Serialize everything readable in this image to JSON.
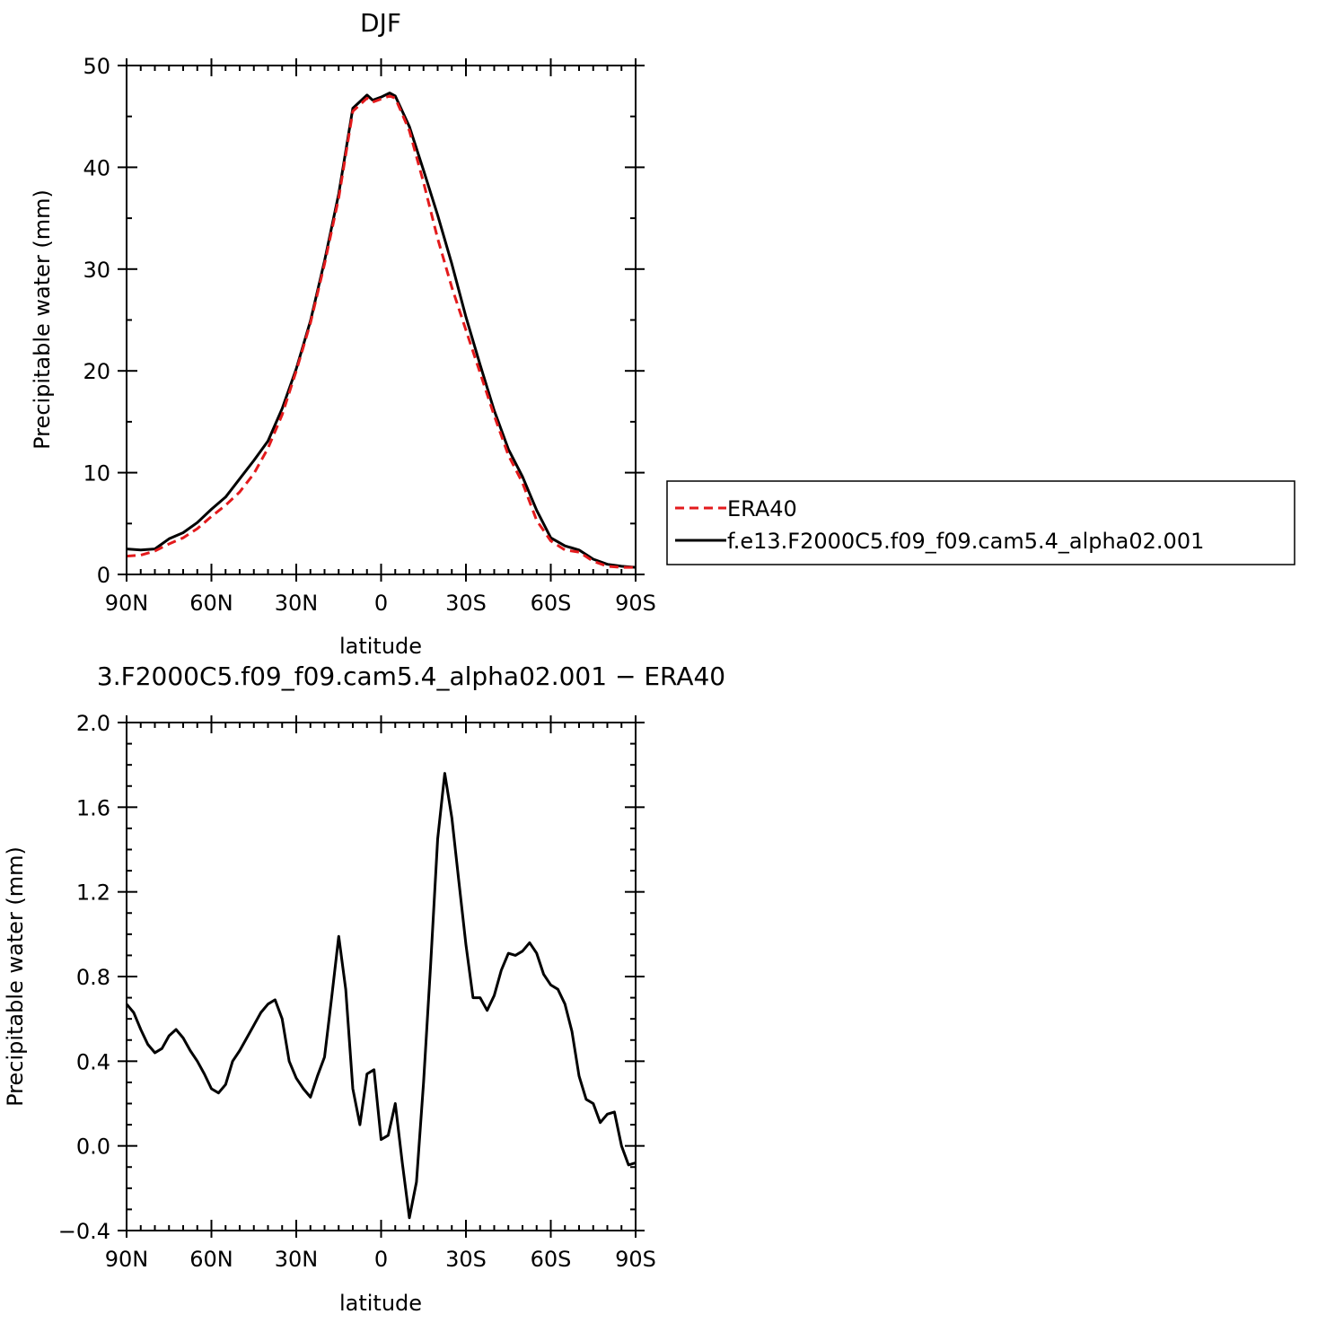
{
  "chart_data": [
    {
      "type": "line",
      "title": "DJF",
      "xlabel": "latitude",
      "ylabel": "Precipitable water (mm)",
      "xlim": [
        90,
        -90
      ],
      "ylim": [
        0,
        50
      ],
      "x_ticks": [
        90,
        60,
        30,
        0,
        -30,
        -60,
        -90
      ],
      "x_tick_labels": [
        "90N",
        "60N",
        "30N",
        "0",
        "30S",
        "60S",
        "90S"
      ],
      "y_ticks": [
        0,
        10,
        20,
        30,
        40,
        50
      ],
      "y_tick_labels": [
        "0",
        "10",
        "20",
        "30",
        "40",
        "50"
      ],
      "legend_position": "right",
      "series": [
        {
          "name": "ERA40",
          "color": "#e31a1c",
          "style": "dashed",
          "x": [
            90,
            85,
            80,
            75,
            70,
            65,
            60,
            55,
            50,
            45,
            40,
            35,
            30,
            25,
            20,
            15,
            10,
            5,
            3,
            0,
            -3,
            -5,
            -10,
            -15,
            -20,
            -25,
            -30,
            -35,
            -40,
            -45,
            -50,
            -55,
            -60,
            -65,
            -70,
            -75,
            -80,
            -85,
            -90
          ],
          "y": [
            1.8,
            1.9,
            2.3,
            3.0,
            3.6,
            4.5,
            5.7,
            6.8,
            8.1,
            9.9,
            12.4,
            15.7,
            20.0,
            24.7,
            30.5,
            37.0,
            45.5,
            46.8,
            46.4,
            46.7,
            47.0,
            46.8,
            43.6,
            38.5,
            33.0,
            28.2,
            24.0,
            19.8,
            15.6,
            11.7,
            9.0,
            5.3,
            3.3,
            2.4,
            2.2,
            1.3,
            0.8,
            0.7,
            0.7
          ]
        },
        {
          "name": "f.e13.F2000C5.f09_f09.cam5.4_alpha02.001",
          "color": "#000000",
          "style": "solid",
          "x": [
            90,
            85,
            80,
            75,
            70,
            65,
            60,
            55,
            50,
            45,
            40,
            35,
            30,
            25,
            20,
            15,
            10,
            5,
            3,
            0,
            -3,
            -5,
            -10,
            -15,
            -20,
            -25,
            -30,
            -35,
            -40,
            -45,
            -50,
            -55,
            -60,
            -65,
            -70,
            -75,
            -80,
            -85,
            -90
          ],
          "y": [
            2.5,
            2.4,
            2.5,
            3.5,
            4.1,
            5.1,
            6.4,
            7.6,
            9.4,
            11.2,
            13.1,
            16.3,
            20.2,
            24.9,
            30.8,
            37.4,
            45.8,
            47.1,
            46.6,
            46.9,
            47.3,
            47.0,
            44.0,
            39.7,
            35.3,
            30.5,
            25.3,
            20.6,
            16.1,
            12.3,
            9.6,
            6.3,
            3.6,
            2.8,
            2.4,
            1.5,
            1.0,
            0.8,
            0.7
          ]
        }
      ]
    },
    {
      "type": "line",
      "title": "3.F2000C5.f09_f09.cam5.4_alpha02.001 − ERA40",
      "xlabel": "latitude",
      "ylabel": "Precipitable water (mm)",
      "xlim": [
        90,
        -90
      ],
      "ylim": [
        -0.4,
        2.0
      ],
      "x_ticks": [
        90,
        60,
        30,
        0,
        -30,
        -60,
        -90
      ],
      "x_tick_labels": [
        "90N",
        "60N",
        "30N",
        "0",
        "30S",
        "60S",
        "90S"
      ],
      "y_ticks": [
        -0.4,
        0.0,
        0.4,
        0.8,
        1.2,
        1.6,
        2.0
      ],
      "y_tick_labels": [
        "−0.4",
        "0.0",
        "0.4",
        "0.8",
        "1.2",
        "1.6",
        "2.0"
      ],
      "series": [
        {
          "color": "#000000",
          "style": "solid",
          "x": [
            90,
            87.5,
            85,
            82.5,
            80,
            77.5,
            75,
            72.5,
            70,
            67.5,
            65,
            62.5,
            60,
            57.5,
            55,
            52.5,
            50,
            47.5,
            45,
            42.5,
            40,
            37.5,
            35,
            32.5,
            30,
            27.5,
            25,
            22.5,
            20,
            17.5,
            15,
            12.5,
            10,
            7.5,
            5,
            2.5,
            0,
            -2.5,
            -5,
            -7.5,
            -10,
            -12.5,
            -15,
            -17.5,
            -20,
            -22.5,
            -25,
            -27.5,
            -30,
            -32.5,
            -35,
            -37.5,
            -40,
            -42.5,
            -45,
            -47.5,
            -50,
            -52.5,
            -55,
            -57.5,
            -60,
            -62.5,
            -65,
            -67.5,
            -70,
            -72.5,
            -75,
            -77.5,
            -80,
            -82.5,
            -85,
            -87.5,
            -90
          ],
          "y": [
            0.67,
            0.63,
            0.55,
            0.48,
            0.44,
            0.46,
            0.52,
            0.55,
            0.51,
            0.45,
            0.4,
            0.34,
            0.27,
            0.25,
            0.29,
            0.4,
            0.45,
            0.51,
            0.57,
            0.63,
            0.67,
            0.69,
            0.6,
            0.4,
            0.32,
            0.27,
            0.23,
            0.33,
            0.42,
            0.7,
            0.99,
            0.74,
            0.27,
            0.1,
            0.34,
            0.36,
            0.03,
            0.05,
            0.2,
            -0.08,
            -0.34,
            -0.17,
            0.3,
            0.85,
            1.45,
            1.76,
            1.55,
            1.25,
            0.95,
            0.7,
            0.7,
            0.64,
            0.71,
            0.83,
            0.91,
            0.9,
            0.92,
            0.96,
            0.91,
            0.81,
            0.76,
            0.74,
            0.67,
            0.54,
            0.33,
            0.22,
            0.2,
            0.11,
            0.15,
            0.16,
            0.0,
            -0.09,
            -0.08
          ]
        }
      ]
    }
  ]
}
